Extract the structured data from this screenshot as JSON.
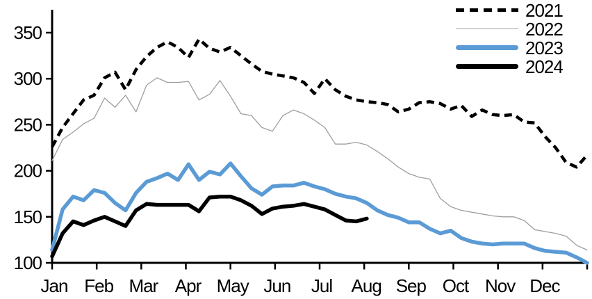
{
  "chart_data": {
    "type": "line",
    "title": "",
    "x_axis": {
      "tick_labels": [
        "Jan",
        "Feb",
        "Mar",
        "Apr",
        "May",
        "Jun",
        "Jul",
        "Aug",
        "Sep",
        "Oct",
        "Nov",
        "Dec"
      ],
      "unit": "week-of-year",
      "weeks_per_year": 52,
      "grid": false
    },
    "y_axis": {
      "min": 100,
      "max": 350,
      "tick_interval": 50,
      "tick_labels": [
        "100",
        "150",
        "200",
        "250",
        "300",
        "350"
      ],
      "grid": false
    },
    "legend_position": "top-right",
    "series": [
      {
        "name": "2021",
        "style": "dashed",
        "color": "#000000",
        "stroke_width": 4.5,
        "draw_order": 2,
        "start_week": 1,
        "values": [
          226,
          247,
          262,
          277,
          282,
          301,
          307,
          288,
          310,
          324,
          334,
          340,
          334,
          323,
          343,
          333,
          329,
          334,
          325,
          316,
          308,
          305,
          303,
          301,
          296,
          284,
          300,
          288,
          281,
          277,
          275,
          274,
          272,
          264,
          267,
          274,
          275,
          273,
          267,
          271,
          259,
          266,
          261,
          260,
          261,
          253,
          252,
          237,
          225,
          209,
          204,
          217
        ]
      },
      {
        "name": "2022",
        "style": "solid-thin",
        "color": "#9e9e9e",
        "stroke_width": 1.3,
        "draw_order": 1,
        "start_week": 1,
        "values": [
          211,
          234,
          242,
          251,
          257,
          279,
          269,
          282,
          264,
          293,
          301,
          296,
          296,
          297,
          277,
          283,
          298,
          281,
          262,
          260,
          247,
          243,
          260,
          266,
          262,
          255,
          247,
          229,
          229,
          231,
          228,
          221,
          213,
          204,
          197,
          193,
          191,
          170,
          161,
          157,
          155,
          153,
          151,
          150,
          150,
          146,
          136,
          134,
          132,
          129,
          119,
          114
        ]
      },
      {
        "name": "2023",
        "style": "solid",
        "color": "#5b9bd5",
        "stroke_width": 5.5,
        "draw_order": 3,
        "start_week": 1,
        "values": [
          114,
          158,
          172,
          168,
          179,
          176,
          165,
          157,
          176,
          188,
          192,
          197,
          190,
          207,
          190,
          199,
          196,
          208,
          194,
          181,
          174,
          183,
          184,
          184,
          187,
          183,
          180,
          175,
          172,
          170,
          165,
          157,
          152,
          149,
          144,
          144,
          137,
          132,
          135,
          127,
          123,
          121,
          120,
          121,
          121,
          121,
          116,
          113,
          112,
          111,
          106,
          100
        ]
      },
      {
        "name": "2024",
        "style": "solid",
        "color": "#000000",
        "stroke_width": 5.5,
        "draw_order": 4,
        "start_week": 1,
        "values": [
          107,
          132,
          145,
          141,
          146,
          150,
          145,
          140,
          157,
          164,
          163,
          163,
          163,
          163,
          156,
          171,
          172,
          172,
          168,
          162,
          153,
          159,
          161,
          162,
          164,
          161,
          158,
          152,
          146,
          145,
          148
        ]
      }
    ]
  },
  "colors": {
    "background": "#ffffff",
    "axis": "#000000",
    "text": "#000000"
  }
}
